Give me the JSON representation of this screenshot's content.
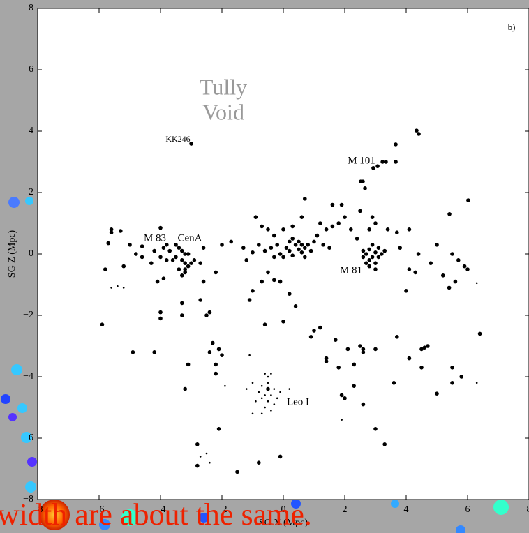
{
  "chart_data": {
    "type": "scatter",
    "xlabel": "SG X (Mpc)",
    "ylabel": "SG Z (Mpc)",
    "xlim": [
      -8,
      8
    ],
    "ylim": [
      -8,
      8
    ],
    "xticks": [
      {
        "value": -8,
        "label": "−8"
      },
      {
        "value": -6,
        "label": "−6"
      },
      {
        "value": -4,
        "label": "−4"
      },
      {
        "value": -2,
        "label": "−2"
      },
      0,
      2,
      4,
      6,
      8
    ],
    "yticks": [
      {
        "value": -8,
        "label": "−8"
      },
      {
        "value": -6,
        "label": "−6"
      },
      {
        "value": -4,
        "label": "−4"
      },
      {
        "value": -2,
        "label": "−2"
      },
      0,
      2,
      4,
      6,
      8
    ],
    "annotations": [
      "b)",
      "Tully",
      "Void",
      "KK246",
      "M 101",
      "M 83",
      "CenA",
      "M 81",
      "Leo I"
    ],
    "footer": "width are about the same.",
    "series": [
      {
        "color": "#000000",
        "size": "large",
        "x": [
          -3.0,
          3.66,
          3.23,
          3.34,
          3.66,
          2.93,
          3.07,
          2.52,
          2.59,
          2.66,
          4.34,
          4.41,
          5.41,
          6.02,
          -3.4,
          -3.3,
          -3.2,
          -3.5,
          -3.3,
          -3.2,
          -3.1,
          -3.4,
          -3.2,
          -3.0,
          -3.6,
          -3.7,
          -3.9,
          -4.0,
          -3.8,
          -3.1,
          -2.9,
          -3.3,
          -3.2,
          -2.6,
          -2.7,
          -3.5,
          -3.8,
          -5.8,
          -5.6,
          -5.6,
          -5.7,
          -5.3,
          -5.2,
          -5.0,
          -4.6,
          -4.6,
          -4.8,
          -4.2,
          -4.0,
          -4.3,
          -4.1,
          -3.9,
          -4.0,
          -4.0,
          -3.3,
          -3.3,
          -2.7,
          -2.6,
          -2.2,
          -2.4,
          -2.5,
          -5.9,
          -4.9,
          -4.2,
          -3.1,
          -3.2,
          -2.3,
          -2.4,
          -2.1,
          -2.0,
          -2.2,
          -2.2,
          -2.1,
          -2.8,
          -2.8,
          -1.5,
          -0.8,
          -0.1,
          -1.7,
          -2.0,
          -1.3,
          -1.0,
          -1.2,
          -1.1,
          -1.0,
          -0.7,
          -0.3,
          -0.5,
          -0.1,
          0.2,
          0.4,
          -0.6,
          0.0,
          -0.9,
          -0.7,
          -0.5,
          -0.8,
          -0.6,
          -0.4,
          -0.3,
          -0.2,
          -0.1,
          0.0,
          0.1,
          0.2,
          0.3,
          0.4,
          0.5,
          0.6,
          0.7,
          0.8,
          0.6,
          0.5,
          0.3,
          0.2,
          0.7,
          0.9,
          1.0,
          1.1,
          1.3,
          1.5,
          1.4,
          0.7,
          0.6,
          0.3,
          0.0,
          -0.3,
          1.2,
          1.6,
          1.9,
          2.0,
          1.8,
          2.2,
          2.4,
          2.5,
          1.6,
          2.6,
          2.7,
          2.8,
          2.9,
          3.0,
          3.1,
          3.2,
          2.8,
          3.0,
          2.7,
          3.1,
          2.9,
          3.3,
          2.6,
          3.0,
          2.8,
          2.9,
          3.0,
          2.8,
          3.4,
          3.7,
          4.1,
          3.8,
          4.1,
          4.0,
          4.4,
          4.3,
          5.0,
          5.2,
          5.4,
          5.6,
          5.7,
          5.9,
          6.0,
          5.5,
          4.8,
          6.4,
          5.8,
          5.5,
          5.5,
          5.0,
          4.5,
          4.6,
          4.7,
          4.5,
          4.1,
          3.7,
          3.6,
          3.0,
          2.6,
          2.6,
          2.3,
          2.1,
          2.3,
          2.6,
          2.0,
          1.9,
          1.8,
          1.4,
          1.4,
          1.0,
          0.9,
          1.2,
          1.7,
          3.0,
          3.3,
          2.5,
          -0.5
        ],
        "values": [
          3.59,
          3.57,
          3.0,
          3.0,
          3.0,
          2.8,
          2.86,
          2.36,
          2.36,
          2.14,
          4.02,
          3.91,
          1.3,
          1.75,
          0.2,
          0.1,
          0.0,
          -0.1,
          -0.2,
          -0.3,
          -0.4,
          -0.5,
          -0.6,
          -0.3,
          -0.2,
          0.1,
          0.2,
          -0.1,
          -0.2,
          0.0,
          -0.2,
          -0.7,
          -0.5,
          0.2,
          -0.3,
          0.3,
          0.3,
          -0.5,
          0.8,
          0.7,
          0.35,
          0.75,
          -0.4,
          0.3,
          0.25,
          -0.1,
          0.0,
          0.1,
          0.85,
          -0.3,
          -0.9,
          -0.8,
          -1.9,
          -2.1,
          -1.6,
          -2.0,
          -1.5,
          -0.9,
          -0.6,
          -1.9,
          -2.0,
          -2.3,
          -3.2,
          -3.2,
          -3.6,
          -4.4,
          -2.9,
          -3.2,
          -3.1,
          -3.3,
          -3.6,
          -3.9,
          -5.7,
          -6.2,
          -6.9,
          -7.1,
          -6.8,
          -6.6,
          0.4,
          0.3,
          0.2,
          0.05,
          -0.2,
          -1.5,
          -1.2,
          -0.9,
          -0.85,
          -0.6,
          -0.9,
          -1.3,
          -1.7,
          -2.3,
          -2.2,
          1.2,
          0.9,
          0.8,
          0.3,
          0.1,
          0.2,
          -0.1,
          0.3,
          0.0,
          -0.1,
          0.2,
          0.1,
          -0.05,
          0.3,
          0.15,
          0.05,
          0.2,
          0.3,
          0.3,
          0.4,
          0.5,
          0.4,
          -0.1,
          0.1,
          0.4,
          0.6,
          0.3,
          0.2,
          0.8,
          1.8,
          1.2,
          0.9,
          0.8,
          0.6,
          1.0,
          1.6,
          1.6,
          1.2,
          1.0,
          0.8,
          0.5,
          1.4,
          0.9,
          0.1,
          0.0,
          0.15,
          -0.1,
          0.05,
          0.2,
          0.0,
          -0.2,
          -0.3,
          -0.3,
          -0.1,
          0.3,
          0.1,
          -0.1,
          -0.5,
          -0.4,
          1.2,
          1.0,
          0.8,
          0.8,
          0.7,
          0.8,
          0.2,
          -0.5,
          -1.2,
          0.0,
          -0.6,
          0.3,
          -0.7,
          -1.1,
          -0.9,
          -0.2,
          -0.4,
          -0.5,
          0.0,
          -0.3,
          -2.6,
          -4.0,
          -3.7,
          -4.2,
          -4.55,
          -3.1,
          -3.05,
          -3.0,
          -3.7,
          -3.4,
          -2.7,
          -4.2,
          -3.1,
          -3.1,
          -3.2,
          -3.6,
          -3.1,
          -4.3,
          -4.9,
          -4.7,
          -4.6,
          -3.7,
          -3.5,
          -3.4,
          -2.5,
          -2.7,
          -2.4,
          -2.8,
          -5.7,
          -6.2,
          -3.0,
          -4.4
        ]
      },
      {
        "color": "#000000",
        "size": "small",
        "x": [
          -0.6,
          -0.4,
          -0.5,
          -0.7,
          -0.5,
          -0.3,
          -0.6,
          -0.4,
          -0.5,
          -0.7,
          -0.3,
          -0.8,
          -0.2,
          -0.1,
          0.2,
          -0.9,
          -0.6,
          -0.4,
          -1.0,
          -1.2,
          -1.0,
          -0.7,
          -0.5,
          -5.4,
          -5.6,
          -5.2,
          -1.9,
          -2.4,
          -2.7,
          -2.5,
          1.9,
          6.3,
          -1.1,
          6.3
        ],
        "values": [
          -3.9,
          -3.9,
          -4.2,
          -4.3,
          -4.4,
          -4.4,
          -4.6,
          -4.6,
          -4.8,
          -4.7,
          -4.9,
          -4.5,
          -4.7,
          -4.5,
          -4.4,
          -4.8,
          -5.0,
          -5.1,
          -4.2,
          -4.4,
          -5.2,
          -5.2,
          -4.0,
          -1.05,
          -1.1,
          -1.1,
          -4.3,
          -6.8,
          -6.6,
          -6.5,
          -5.4,
          -4.2,
          -3.3,
          -0.95
        ]
      }
    ]
  }
}
